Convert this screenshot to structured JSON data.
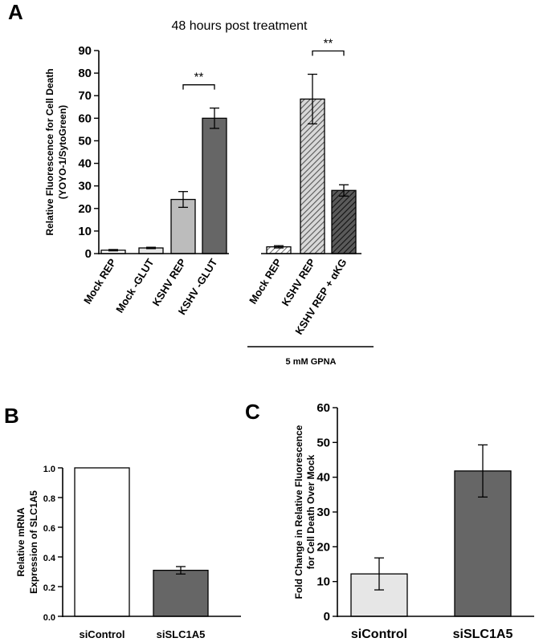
{
  "chart_data": [
    {
      "panel": "A",
      "type": "bar",
      "title": "48 hours post treatment",
      "ylabel": [
        "Relative Fluorescence for Cell Death",
        "(YOYO-1/SytoGreen)"
      ],
      "ylim": [
        0,
        90
      ],
      "yticks": [
        0,
        10,
        20,
        30,
        40,
        50,
        60,
        70,
        80,
        90
      ],
      "categories": [
        "Mock REP",
        "Mock -GLUT",
        "KSHV REP",
        "KSHV -GLUT",
        "Mock REP",
        "KSHV REP",
        "KSHV REP + αKG"
      ],
      "values": [
        1.5,
        2.5,
        24,
        60,
        3,
        68.5,
        28
      ],
      "errors": [
        0.3,
        0.3,
        3.5,
        4.5,
        0.5,
        11,
        2.5
      ],
      "fills": [
        "#ffffff",
        "#e6e6e6",
        "#bcbcbc",
        "#666666",
        "hatch-light",
        "hatch-mid",
        "hatch-dark"
      ],
      "group_label": "5 mM GPNA",
      "significance": [
        {
          "from": 2,
          "to": 3,
          "label": "**"
        },
        {
          "from": 5,
          "to": 6,
          "label": "**"
        }
      ]
    },
    {
      "panel": "B",
      "type": "bar",
      "ylabel": [
        "Relative mRNA",
        "Expression of SLC1A5"
      ],
      "ylim": [
        0,
        1.0
      ],
      "yticks": [
        "0.0",
        "0.2",
        "0.4",
        "0.6",
        "0.8",
        "1.0"
      ],
      "categories": [
        "siControl",
        "siSLC1A5"
      ],
      "values": [
        1.0,
        0.31
      ],
      "errors": [
        0,
        0.025
      ],
      "fills": [
        "#ffffff",
        "#666666"
      ]
    },
    {
      "panel": "C",
      "type": "bar",
      "ylabel": [
        "Fold Change in Relative Fluorescence",
        "for Cell Death Over Mock"
      ],
      "ylim": [
        0,
        60
      ],
      "yticks": [
        0,
        10,
        20,
        30,
        40,
        50,
        60
      ],
      "categories": [
        "siControl",
        "siSLC1A5"
      ],
      "values": [
        12.2,
        41.8
      ],
      "errors": [
        4.6,
        7.5
      ],
      "fills": [
        "#e6e6e6",
        "#666666"
      ]
    }
  ]
}
